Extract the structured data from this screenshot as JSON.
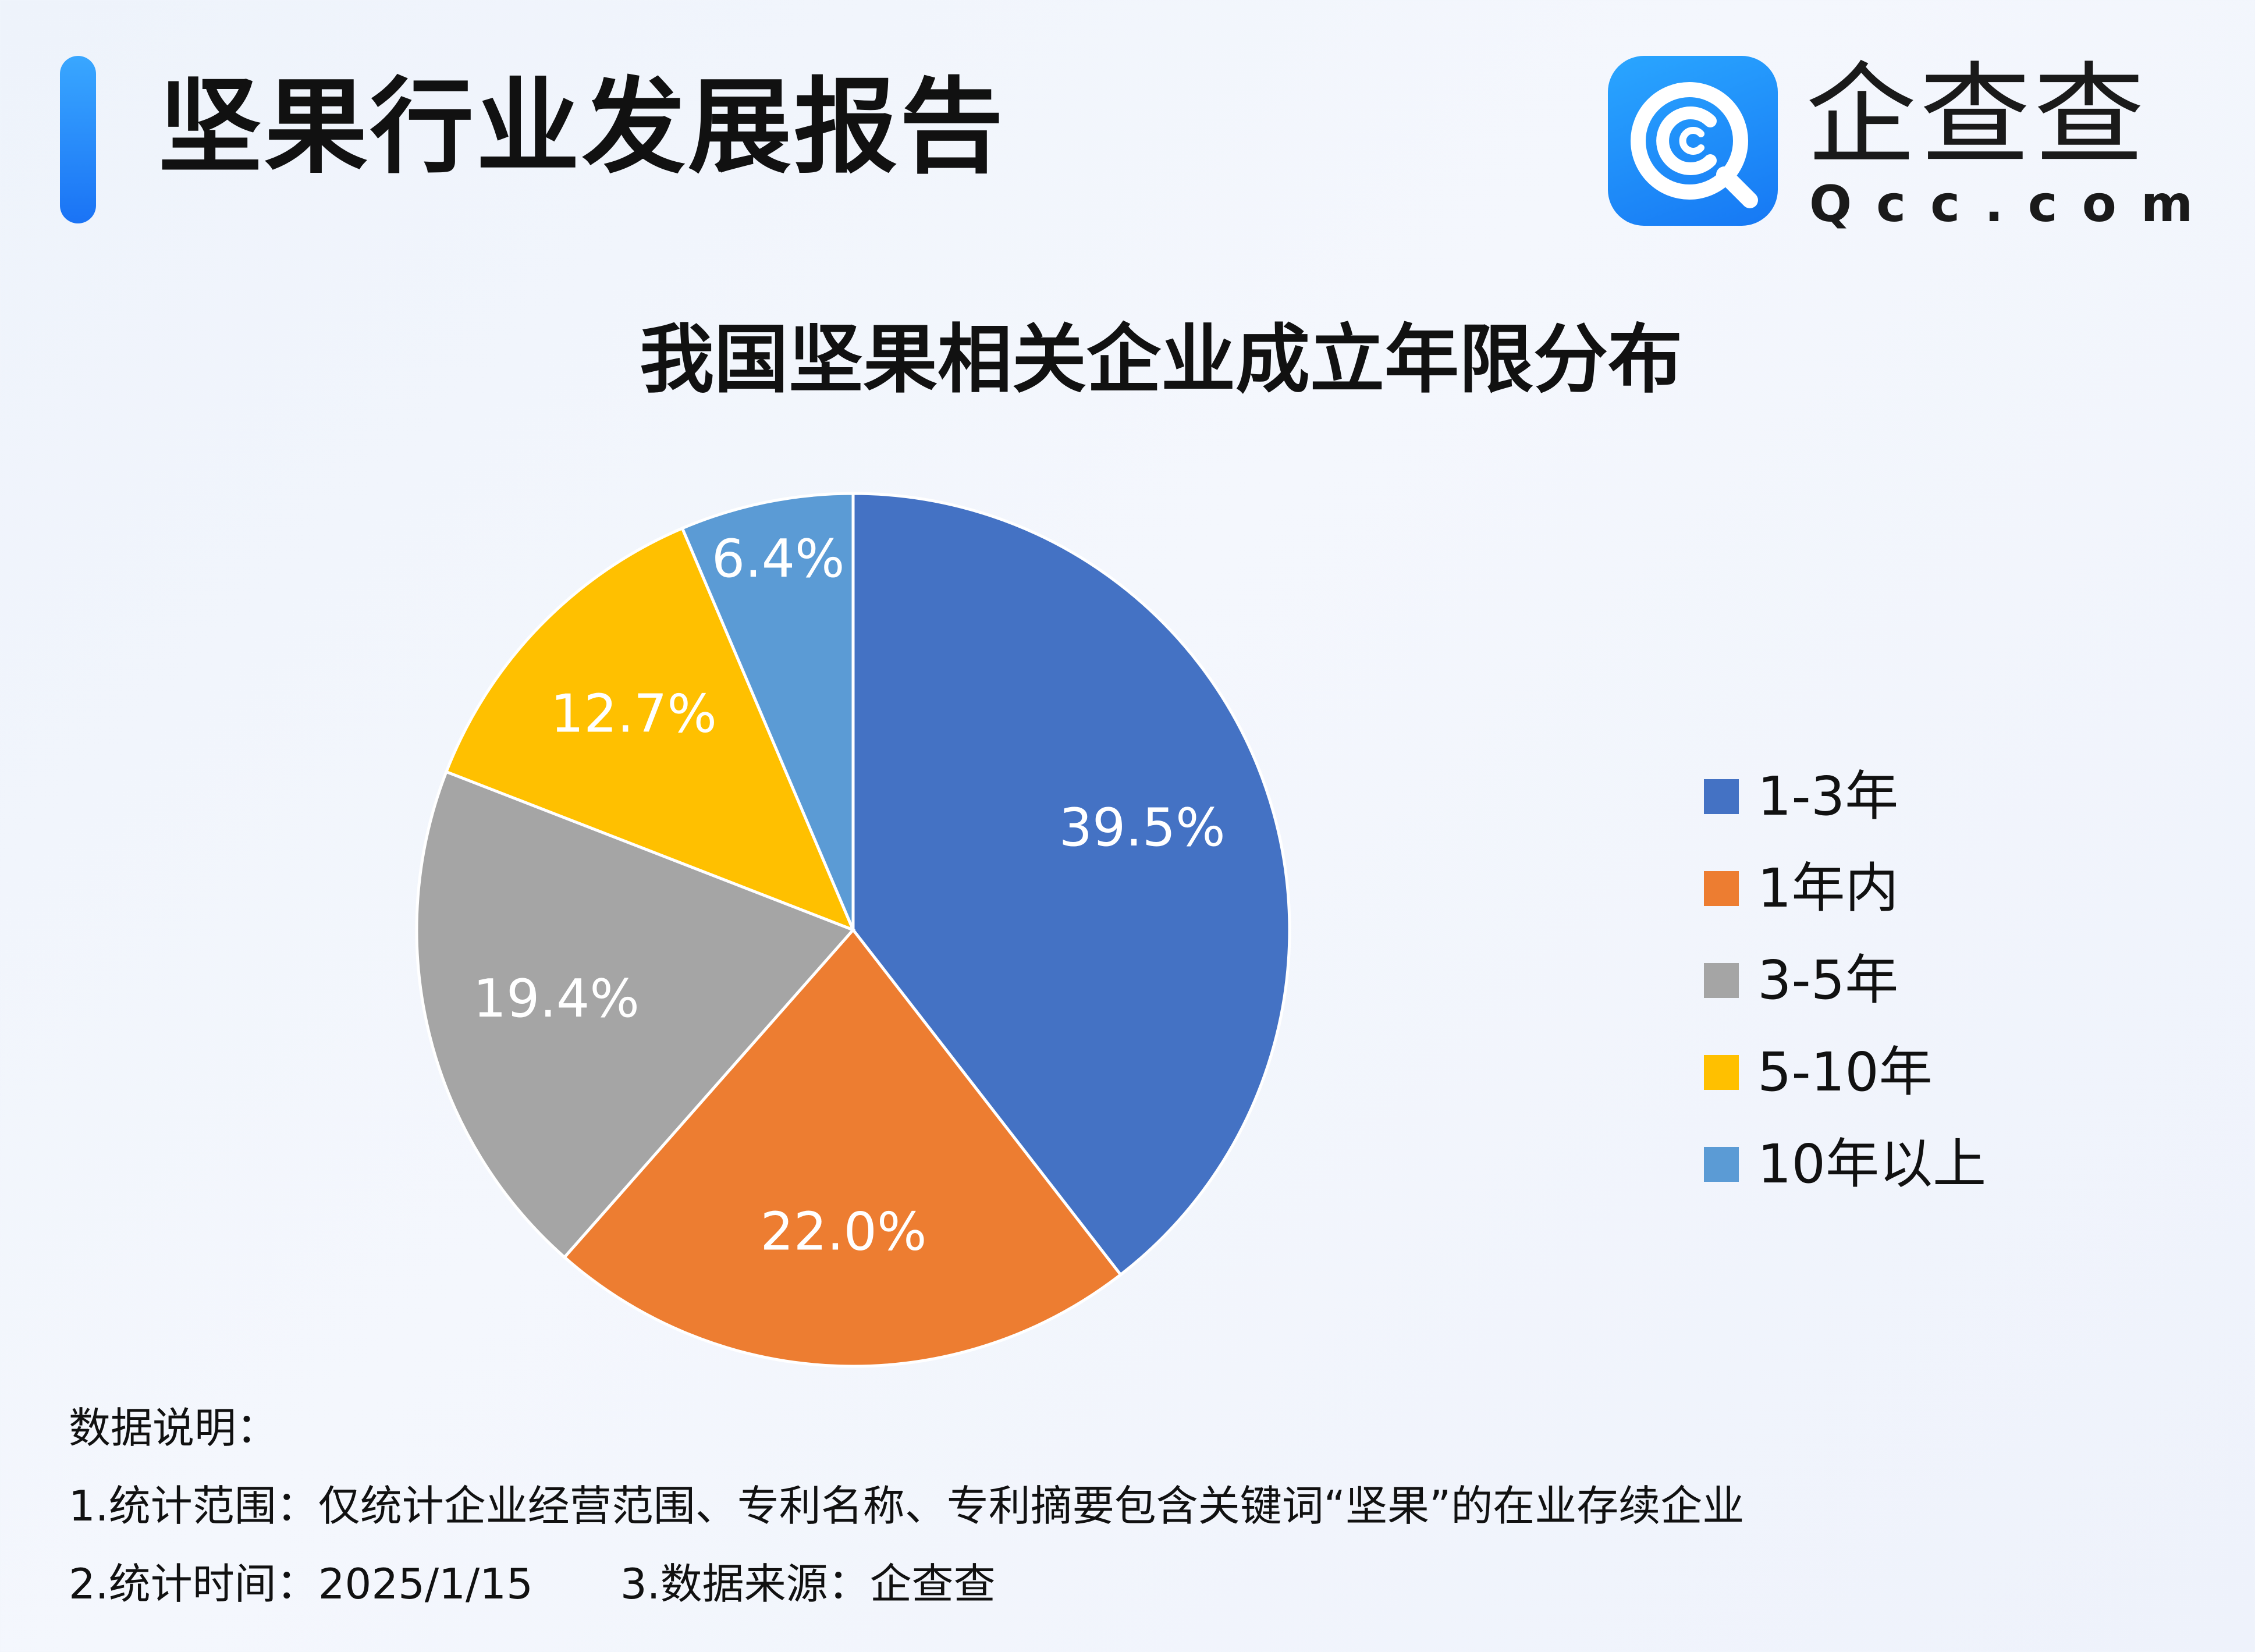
{
  "header": {
    "title": "坚果行业发展报告",
    "accent_color": "#1a73f5"
  },
  "logo": {
    "name": "企查查",
    "domain": "Qcc.com",
    "icon": "qcc-logo-icon"
  },
  "chart_data": {
    "type": "pie",
    "title": "我国坚果相关企业成立年限分布",
    "legend_position": "right",
    "slices": [
      {
        "label": "1-3年",
        "value": 39.5,
        "display": "39.5%",
        "color": "#4472c4"
      },
      {
        "label": "1年内",
        "value": 22.0,
        "display": "22.0%",
        "color": "#ed7d31"
      },
      {
        "label": "3-5年",
        "value": 19.4,
        "display": "19.4%",
        "color": "#a5a5a5"
      },
      {
        "label": "5-10年",
        "value": 12.7,
        "display": "12.7%",
        "color": "#ffc000"
      },
      {
        "label": "10年以上",
        "value": 6.4,
        "display": "6.4%",
        "color": "#5b9bd5"
      }
    ]
  },
  "notes": {
    "heading": "数据说明：",
    "scope": "1.统计范围：仅统计企业经营范围、专利名称、专利摘要包含关键词“坚果”的在业存续企业",
    "time": "2.统计时间：2025/1/15",
    "source": "3.数据来源：企查查"
  }
}
